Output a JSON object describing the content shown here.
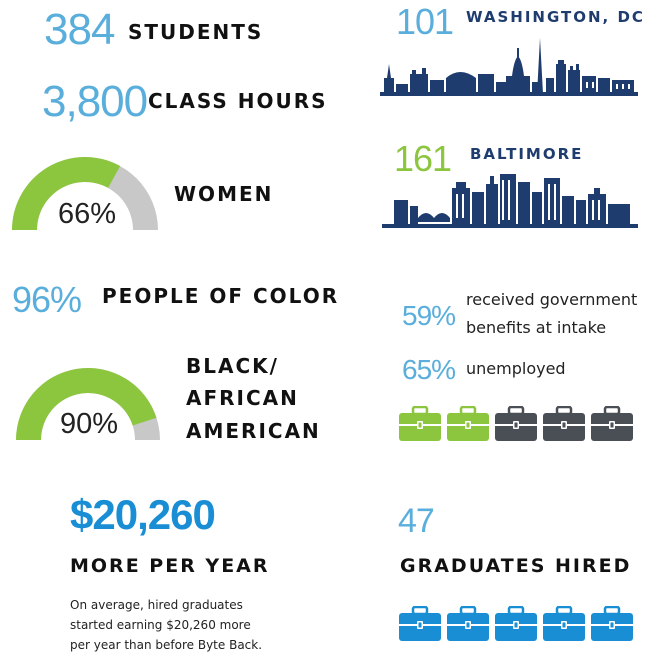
{
  "stats": {
    "students": {
      "number": "384",
      "label": "STUDENTS"
    },
    "class_hours": {
      "number": "3,800",
      "label": "CLASS HOURS"
    },
    "women": {
      "percent": "66%",
      "label": "WOMEN",
      "fraction": 0.66
    },
    "people_of_color": {
      "number": "96%",
      "label": "PEOPLE OF COLOR"
    },
    "black_african_american": {
      "percent": "90%",
      "label_lines": [
        "BLACK/",
        "AFRICAN",
        "AMERICAN"
      ],
      "fraction": 0.9
    },
    "earnings": {
      "number": "$20,260",
      "label": "MORE PER YEAR",
      "desc_lines": [
        "On average, hired graduates",
        "started earning $20,260 more",
        "per year than before Byte Back."
      ]
    }
  },
  "cities": {
    "washington": {
      "number": "101",
      "label": "WASHINGTON, DC"
    },
    "baltimore": {
      "number": "161",
      "label": "BALTIMORE"
    }
  },
  "benefits": {
    "government": {
      "percent": "59%",
      "text_lines": [
        "received government",
        "benefits at intake"
      ]
    },
    "unemployed": {
      "percent": "65%",
      "text": "unemployed"
    },
    "briefcases_highlighted": 2,
    "briefcases_total": 5
  },
  "graduates": {
    "number": "47",
    "label": "GRADUATES HIRED",
    "briefcases_total": 5
  },
  "colors": {
    "light_blue": "#5aaedc",
    "green": "#8cc63f",
    "navy": "#1f3c6e",
    "bright_blue": "#1a8ed4",
    "gray": "#c8c8c8",
    "dark_gray": "#4a4f56",
    "case_blue": "#1a8ed4"
  },
  "icons": {
    "briefcase": "briefcase-icon",
    "washington_skyline": "washington-skyline-icon",
    "baltimore_skyline": "baltimore-skyline-icon"
  }
}
